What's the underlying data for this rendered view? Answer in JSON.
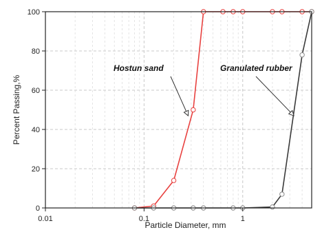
{
  "chart_data": {
    "type": "line",
    "title": "",
    "xlabel": "Particle Diameter, mm",
    "ylabel": "Percent Passing,%",
    "x_scale": "log",
    "xlim": [
      0.01,
      5
    ],
    "ylim": [
      0,
      100
    ],
    "x_ticks": [
      {
        "value": 0.01,
        "label": "0.01"
      },
      {
        "value": 0.1,
        "label": "0.1"
      },
      {
        "value": 1,
        "label": "1"
      }
    ],
    "y_ticks": [
      {
        "value": 0,
        "label": "0"
      },
      {
        "value": 20,
        "label": "20"
      },
      {
        "value": 40,
        "label": "40"
      },
      {
        "value": 60,
        "label": "60"
      },
      {
        "value": 80,
        "label": "80"
      },
      {
        "value": 100,
        "label": "100"
      }
    ],
    "grid": true,
    "series": [
      {
        "color": "#e8413f",
        "points": [
          {
            "x": 0.08,
            "y": 0
          },
          {
            "x": 0.125,
            "y": 1
          },
          {
            "x": 0.2,
            "y": 14
          },
          {
            "x": 0.315,
            "y": 50
          },
          {
            "x": 0.4,
            "y": 100
          },
          {
            "x": 0.63,
            "y": 100
          },
          {
            "x": 0.8,
            "y": 100
          },
          {
            "x": 1,
            "y": 100
          },
          {
            "x": 2,
            "y": 100
          },
          {
            "x": 2.5,
            "y": 100
          },
          {
            "x": 4,
            "y": 100
          },
          {
            "x": 5,
            "y": 100
          }
        ]
      },
      {
        "color": "#3a3a3a",
        "points": [
          {
            "x": 0.08,
            "y": 0
          },
          {
            "x": 0.125,
            "y": 0
          },
          {
            "x": 0.2,
            "y": 0
          },
          {
            "x": 0.315,
            "y": 0
          },
          {
            "x": 0.4,
            "y": 0
          },
          {
            "x": 0.8,
            "y": 0
          },
          {
            "x": 1,
            "y": 0
          },
          {
            "x": 2,
            "y": 0.5
          },
          {
            "x": 2.5,
            "y": 7
          },
          {
            "x": 4,
            "y": 78
          },
          {
            "x": 5,
            "y": 100
          }
        ]
      }
    ],
    "annotations": [
      {
        "text": "Hostun sand",
        "target_series": 0,
        "target": {
          "x": 0.28,
          "y": 47
        }
      },
      {
        "text": "Granulated rubber",
        "target_series": 1,
        "target": {
          "x": 3.3,
          "y": 47
        }
      }
    ]
  }
}
